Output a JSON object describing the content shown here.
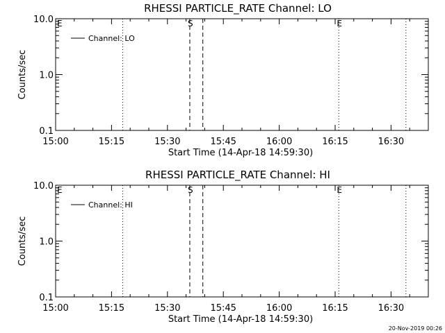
{
  "footer": {
    "timestamp": "20-Nov-2019 00:26"
  },
  "chart_data": [
    {
      "type": "line",
      "title": "RHESSI PARTICLE_RATE Channel: LO",
      "xlabel": "Start Time (14-Apr-18 14:59:30)",
      "ylabel": "Counts/sec",
      "xlim": [
        "15:00",
        "16:40"
      ],
      "ylim": [
        0.1,
        10.0
      ],
      "yscale": "log",
      "x_ticks": [
        "15:00",
        "15:15",
        "15:30",
        "15:45",
        "16:00",
        "16:15",
        "16:30"
      ],
      "y_ticks": [
        "0.1",
        "1.0",
        "10.0"
      ],
      "legend": {
        "placement": "top-left",
        "entries": [
          "Channel: LO"
        ]
      },
      "series": [
        {
          "name": "Channel: LO",
          "values": []
        }
      ],
      "markers": [
        {
          "label": "E",
          "time": "15:00",
          "style": "none"
        },
        {
          "label": "",
          "time": "15:18",
          "style": "dotted"
        },
        {
          "label": "S",
          "time": "15:36",
          "style": "dashed"
        },
        {
          "label": "",
          "time": "15:39.5",
          "style": "dashed"
        },
        {
          "label": "E",
          "time": "16:16",
          "style": "dotted"
        },
        {
          "label": "",
          "time": "16:34",
          "style": "dotted"
        }
      ]
    },
    {
      "type": "line",
      "title": "RHESSI PARTICLE_RATE Channel: HI",
      "xlabel": "Start Time (14-Apr-18 14:59:30)",
      "ylabel": "Counts/sec",
      "xlim": [
        "15:00",
        "16:40"
      ],
      "ylim": [
        0.1,
        10.0
      ],
      "yscale": "log",
      "x_ticks": [
        "15:00",
        "15:15",
        "15:30",
        "15:45",
        "16:00",
        "16:15",
        "16:30"
      ],
      "y_ticks": [
        "0.1",
        "1.0",
        "10.0"
      ],
      "legend": {
        "placement": "top-left",
        "entries": [
          "Channel: HI"
        ]
      },
      "series": [
        {
          "name": "Channel: HI",
          "values": []
        }
      ],
      "markers": [
        {
          "label": "E",
          "time": "15:00",
          "style": "none"
        },
        {
          "label": "",
          "time": "15:18",
          "style": "dotted"
        },
        {
          "label": "S",
          "time": "15:36",
          "style": "dashed"
        },
        {
          "label": "",
          "time": "15:39.5",
          "style": "dashed"
        },
        {
          "label": "E",
          "time": "16:16",
          "style": "dotted"
        },
        {
          "label": "",
          "time": "16:34",
          "style": "dotted"
        }
      ]
    }
  ]
}
